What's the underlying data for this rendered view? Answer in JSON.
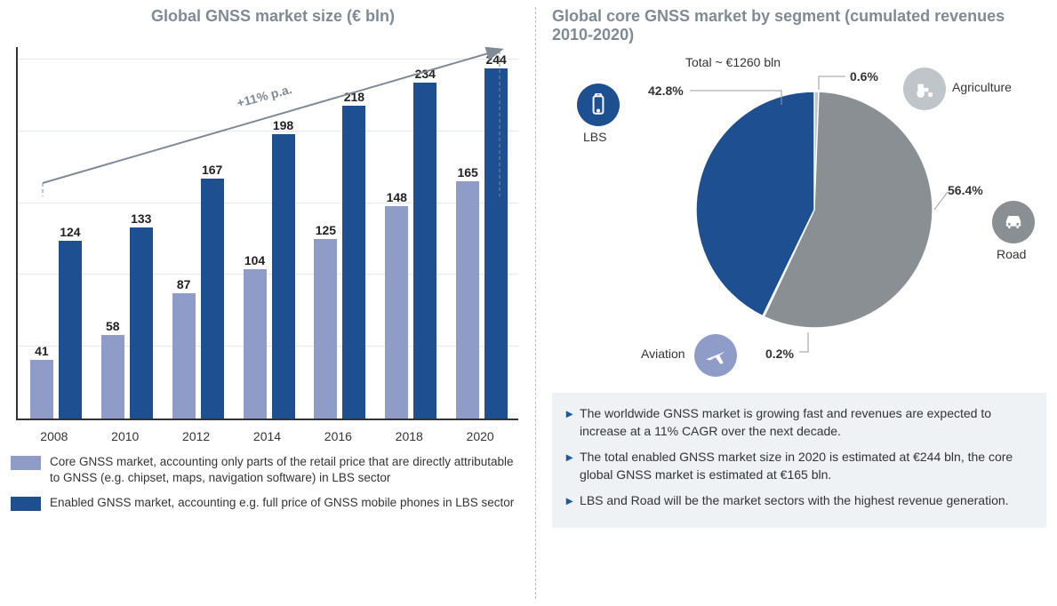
{
  "left": {
    "title": "Global GNSS market size (€ bln)",
    "annotation": "+11% p.a.",
    "annotation_color": "#7f8a94",
    "years": [
      "2008",
      "2010",
      "2012",
      "2014",
      "2016",
      "2018",
      "2020"
    ],
    "core_values": [
      41,
      58,
      87,
      104,
      125,
      148,
      165
    ],
    "enabled_values": [
      124,
      133,
      167,
      198,
      218,
      234,
      244
    ],
    "core_color": "#8f9cc8",
    "enabled_color": "#1d4f91",
    "axis_color": "#333333",
    "grid_color": "#e4e8ec",
    "ymax": 260,
    "grid_steps": [
      50,
      100,
      150,
      200,
      250
    ],
    "legend": {
      "core": "Core GNSS market, accounting only parts of the retail price that are directly attributable to GNSS (e.g. chipset, maps, navigation software) in LBS sector",
      "enabled": "Enabled GNSS market, accounting e.g. full price of GNSS mobile phones in LBS sector"
    }
  },
  "right": {
    "title": "Global core GNSS market by segment (cumulated revenues 2010-2020)",
    "total": "Total ~  €1260 bln",
    "segments": [
      {
        "name": "LBS",
        "pct": 42.8,
        "color": "#1d4f91",
        "icon": "phone"
      },
      {
        "name": "Road",
        "pct": 56.4,
        "color": "#8a8f94",
        "icon": "car"
      },
      {
        "name": "Agriculture",
        "pct": 0.6,
        "color": "#c0c5ca",
        "icon": "tractor"
      },
      {
        "name": "Aviation",
        "pct": 0.2,
        "color": "#8f9cc8",
        "icon": "plane"
      }
    ],
    "label_lbs": "42.8%",
    "label_road": "56.4%",
    "label_agri": "0.6%",
    "label_avia": "0.2%",
    "bullets": [
      "The worldwide GNSS market is growing fast and revenues are expected to increase at a 11% CAGR over the next decade.",
      "The total enabled GNSS market size in 2020 is estimated at €244 bln, the core global GNSS market is estimated at €165 bln.",
      "LBS and Road will be the market sectors with the highest revenue generation."
    ]
  }
}
